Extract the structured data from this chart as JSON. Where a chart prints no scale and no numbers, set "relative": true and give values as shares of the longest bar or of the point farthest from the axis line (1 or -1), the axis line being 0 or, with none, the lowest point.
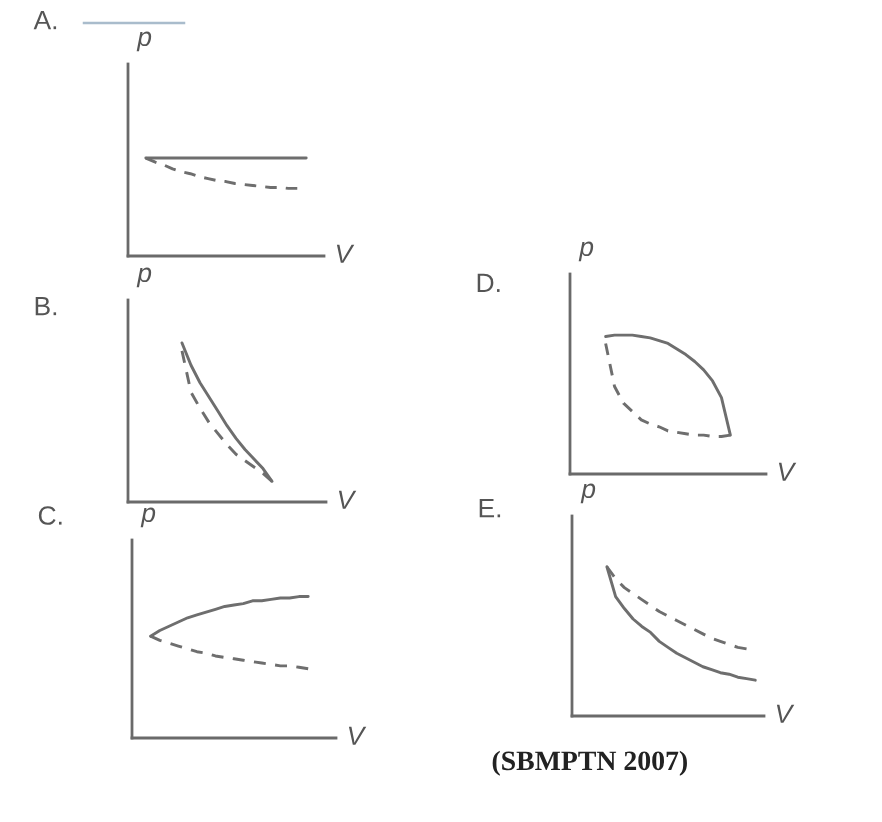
{
  "chart_data": [
    {
      "type": "line",
      "title": "A.",
      "xlabel": "V",
      "ylabel": "p",
      "relative": true,
      "categories": [
        null,
        null,
        null,
        null,
        null,
        null,
        null,
        null,
        null,
        null,
        null,
        null,
        null,
        null,
        null,
        null,
        null,
        null,
        null,
        null,
        null
      ],
      "series": [
        {
          "color": "#6e6e6e",
          "line_style": "solid",
          "values": [
            null,
            1,
            1,
            1,
            1,
            1,
            1,
            1,
            1,
            1,
            1,
            1,
            1,
            1,
            1,
            1,
            1,
            1,
            1,
            1,
            null
          ]
        },
        {
          "color": "#6e6e6e",
          "line_style": "dashed",
          "values": [
            null,
            1,
            0.96,
            0.93,
            0.89,
            0.86,
            0.84,
            0.81,
            0.79,
            0.77,
            0.76,
            0.74,
            0.73,
            0.72,
            0.71,
            0.7,
            0.7,
            0.69,
            0.69,
            null,
            null
          ]
        }
      ]
    },
    {
      "type": "line",
      "title": "B.",
      "xlabel": "V",
      "ylabel": "p",
      "relative": true,
      "categories": [
        null,
        null,
        null,
        null,
        null,
        null,
        null,
        null,
        null,
        null,
        null,
        null,
        null,
        null,
        null,
        null,
        null,
        null,
        null,
        null,
        null
      ],
      "series": [
        {
          "color": "#6e6e6e",
          "line_style": "solid",
          "values": [
            null,
            null,
            null,
            null,
            null,
            1,
            0.86,
            0.75,
            0.66,
            0.57,
            0.48,
            0.4,
            0.33,
            0.27,
            0.21,
            0.13,
            null,
            null,
            null,
            null,
            null
          ]
        },
        {
          "color": "#6e6e6e",
          "line_style": "dashed",
          "values": [
            null,
            null,
            null,
            null,
            null,
            0.95,
            0.69,
            0.59,
            0.5,
            0.43,
            0.36,
            0.3,
            0.26,
            0.22,
            0.18,
            0.13,
            null,
            null,
            null,
            null,
            null
          ]
        }
      ]
    },
    {
      "type": "line",
      "title": "C.",
      "xlabel": "V",
      "ylabel": "p",
      "relative": true,
      "categories": [
        null,
        null,
        null,
        null,
        null,
        null,
        null,
        null,
        null,
        null,
        null,
        null,
        null,
        null,
        null,
        null,
        null,
        null,
        null,
        null,
        null
      ],
      "series": [
        {
          "color": "#6e6e6e",
          "line_style": "solid",
          "values": [
            null,
            0.72,
            0.76,
            0.79,
            0.82,
            0.85,
            0.87,
            0.89,
            0.91,
            0.93,
            0.94,
            0.95,
            0.97,
            0.97,
            0.98,
            0.99,
            0.99,
            1,
            1,
            null,
            null
          ]
        },
        {
          "color": "#6e6e6e",
          "line_style": "dashed",
          "values": [
            null,
            0.72,
            0.69,
            0.67,
            0.65,
            0.63,
            0.61,
            0.6,
            0.58,
            0.57,
            0.56,
            0.55,
            0.54,
            0.53,
            0.52,
            0.51,
            0.51,
            0.5,
            0.49,
            null,
            null
          ]
        }
      ]
    },
    {
      "type": "line",
      "title": "D.",
      "xlabel": "V",
      "ylabel": "p",
      "relative": true,
      "categories": [
        null,
        null,
        null,
        null,
        null,
        null,
        null,
        null,
        null,
        null,
        null,
        null,
        null,
        null,
        null,
        null,
        null,
        null,
        null,
        null,
        null
      ],
      "series": [
        {
          "color": "#6e6e6e",
          "line_style": "solid",
          "values": [
            null,
            null,
            null,
            0.99,
            1,
            1,
            1,
            0.99,
            0.98,
            0.96,
            0.94,
            0.9,
            0.86,
            0.81,
            0.75,
            0.67,
            0.55,
            0.28,
            null,
            null,
            null
          ]
        },
        {
          "color": "#6e6e6e",
          "line_style": "dashed",
          "values": [
            null,
            null,
            null,
            0.94,
            0.63,
            0.51,
            0.45,
            0.39,
            0.36,
            0.34,
            0.31,
            0.3,
            0.29,
            0.28,
            0.28,
            0.27,
            0.27,
            0.28,
            null,
            null,
            null
          ]
        }
      ]
    },
    {
      "type": "line",
      "title": "E.",
      "xlabel": "V",
      "ylabel": "p",
      "relative": true,
      "categories": [
        null,
        null,
        null,
        null,
        null,
        null,
        null,
        null,
        null,
        null,
        null,
        null,
        null,
        null,
        null,
        null,
        null,
        null,
        null,
        null,
        null
      ],
      "series": [
        {
          "color": "#6e6e6e",
          "line_style": "solid",
          "values": [
            null,
            null,
            null,
            1,
            0.8,
            0.72,
            0.65,
            0.6,
            0.56,
            0.5,
            0.46,
            0.42,
            0.39,
            0.36,
            0.33,
            0.31,
            0.29,
            0.28,
            0.26,
            0.25,
            0.24
          ]
        },
        {
          "color": "#6e6e6e",
          "line_style": "dashed",
          "values": [
            null,
            null,
            null,
            1,
            0.92,
            0.86,
            0.82,
            0.78,
            0.74,
            0.7,
            0.67,
            0.64,
            0.61,
            0.58,
            0.55,
            0.52,
            0.5,
            0.48,
            0.46,
            0.45,
            null
          ]
        }
      ],
      "annotations": [
        "(SBMPTN 2007)"
      ]
    }
  ]
}
